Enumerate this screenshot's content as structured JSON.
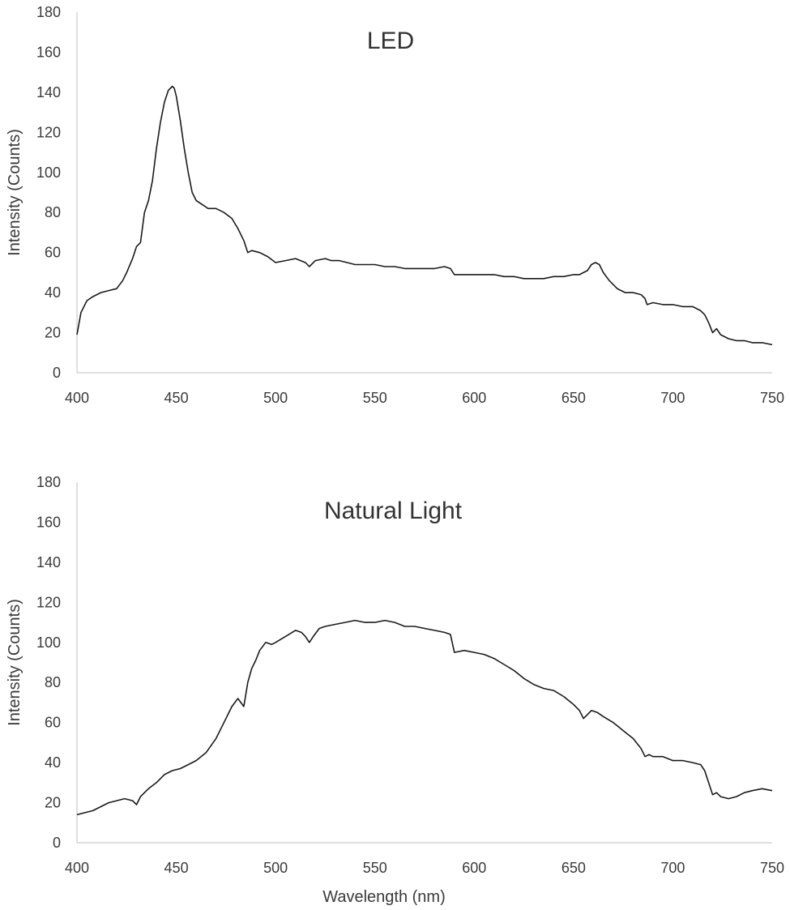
{
  "chart_data": [
    {
      "type": "line",
      "title": "LED",
      "xlabel": "",
      "ylabel": "Intensity (Counts)",
      "xlim": [
        400,
        750
      ],
      "ylim": [
        0,
        180
      ],
      "x_ticks": [
        "400",
        "450",
        "500",
        "550",
        "600",
        "650",
        "700",
        "750"
      ],
      "y_ticks": [
        "0",
        "20",
        "40",
        "60",
        "80",
        "100",
        "120",
        "140",
        "160",
        "180"
      ],
      "grid": false,
      "line_color": "#1a1a1a",
      "series": [
        {
          "x": [
            400,
            402,
            405,
            408,
            412,
            416,
            420,
            423,
            425,
            428,
            430,
            432,
            434,
            436,
            438,
            440,
            442,
            444,
            446,
            448,
            449,
            450,
            452,
            454,
            456,
            458,
            460,
            463,
            466,
            470,
            474,
            478,
            481,
            484,
            486,
            488,
            492,
            496,
            500,
            505,
            510,
            515,
            517,
            520,
            525,
            528,
            532,
            536,
            540,
            545,
            550,
            555,
            560,
            565,
            570,
            575,
            580,
            585,
            588,
            590,
            595,
            600,
            605,
            610,
            615,
            620,
            625,
            630,
            635,
            640,
            645,
            650,
            653,
            655,
            657,
            659,
            661,
            663,
            665,
            668,
            672,
            676,
            680,
            684,
            686,
            687,
            690,
            695,
            700,
            705,
            710,
            714,
            716,
            718,
            720,
            722,
            724,
            728,
            732,
            736,
            740,
            745,
            750
          ],
          "y": [
            19,
            30,
            36,
            38,
            40,
            41,
            42,
            46,
            50,
            57,
            63,
            65,
            80,
            86,
            96,
            112,
            125,
            135,
            141,
            143,
            142,
            138,
            126,
            112,
            100,
            90,
            86,
            84,
            82,
            82,
            80,
            77,
            72,
            66,
            60,
            61,
            60,
            58,
            55,
            56,
            57,
            55,
            53,
            56,
            57,
            56,
            56,
            55,
            54,
            54,
            54,
            53,
            53,
            52,
            52,
            52,
            52,
            53,
            52,
            49,
            49,
            49,
            49,
            49,
            48,
            48,
            47,
            47,
            47,
            48,
            48,
            49,
            49,
            50,
            51,
            54,
            55,
            54,
            50,
            46,
            42,
            40,
            40,
            39,
            37,
            34,
            35,
            34,
            34,
            33,
            33,
            31,
            29,
            25,
            20,
            22,
            19,
            17,
            16,
            16,
            15,
            15,
            14
          ]
        }
      ]
    },
    {
      "type": "line",
      "title": "Natural Light",
      "xlabel": "Wavelength (nm)",
      "ylabel": "Intensity (Counts)",
      "xlim": [
        400,
        750
      ],
      "ylim": [
        0,
        180
      ],
      "x_ticks": [
        "400",
        "450",
        "500",
        "550",
        "600",
        "650",
        "700",
        "750"
      ],
      "y_ticks": [
        "0",
        "20",
        "40",
        "60",
        "80",
        "100",
        "120",
        "140",
        "160",
        "180"
      ],
      "grid": false,
      "line_color": "#1a1a1a",
      "series": [
        {
          "x": [
            400,
            404,
            408,
            412,
            416,
            420,
            424,
            428,
            430,
            432,
            434,
            436,
            440,
            444,
            448,
            452,
            456,
            460,
            465,
            470,
            474,
            478,
            481,
            484,
            486,
            488,
            490,
            492,
            495,
            498,
            500,
            505,
            510,
            513,
            515,
            517,
            519,
            522,
            525,
            530,
            535,
            540,
            545,
            550,
            555,
            560,
            565,
            570,
            575,
            580,
            585,
            588,
            590,
            595,
            600,
            605,
            610,
            615,
            620,
            625,
            630,
            635,
            640,
            645,
            650,
            653,
            655,
            657,
            659,
            662,
            665,
            670,
            675,
            680,
            684,
            686,
            688,
            690,
            695,
            700,
            705,
            710,
            714,
            716,
            718,
            720,
            722,
            724,
            728,
            732,
            736,
            740,
            745,
            750
          ],
          "y": [
            14,
            15,
            16,
            18,
            20,
            21,
            22,
            21,
            19,
            23,
            25,
            27,
            30,
            34,
            36,
            37,
            39,
            41,
            45,
            52,
            60,
            68,
            72,
            68,
            80,
            87,
            91,
            96,
            100,
            99,
            100,
            103,
            106,
            105,
            103,
            100,
            103,
            107,
            108,
            109,
            110,
            111,
            110,
            110,
            111,
            110,
            108,
            108,
            107,
            106,
            105,
            104,
            95,
            96,
            95,
            94,
            92,
            89,
            86,
            82,
            79,
            77,
            76,
            73,
            69,
            66,
            62,
            64,
            66,
            65,
            63,
            60,
            56,
            52,
            47,
            43,
            44,
            43,
            43,
            41,
            41,
            40,
            39,
            36,
            30,
            24,
            25,
            23,
            22,
            23,
            25,
            26,
            27,
            26
          ]
        }
      ]
    }
  ]
}
